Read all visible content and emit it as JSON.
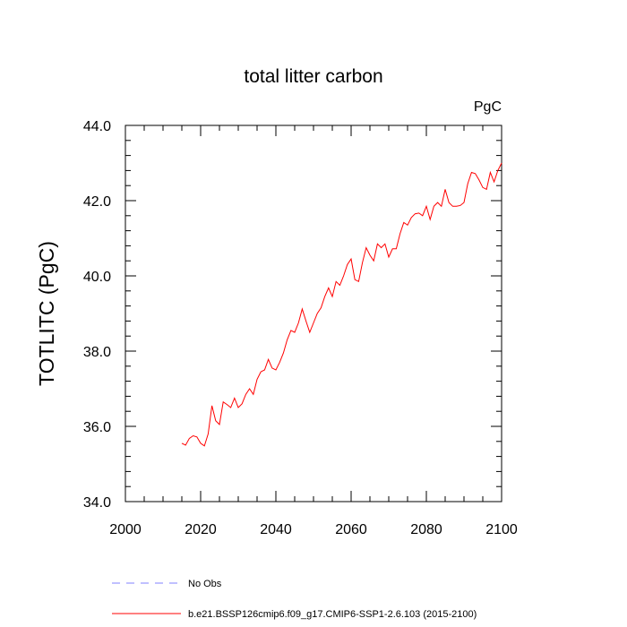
{
  "chart_data": {
    "type": "line",
    "title": "total litter carbon",
    "units_label": "PgC",
    "ylabel": "TOTLITC  (PgC)",
    "xlabel": "",
    "xlim": [
      2000,
      2100
    ],
    "ylim": [
      34.0,
      44.0
    ],
    "x_ticks": [
      2000,
      2020,
      2040,
      2060,
      2080,
      2100
    ],
    "x_tick_labels": [
      "2000",
      "2020",
      "2040",
      "2060",
      "2080",
      "2100"
    ],
    "y_ticks": [
      34.0,
      36.0,
      38.0,
      40.0,
      42.0,
      44.0
    ],
    "y_tick_labels": [
      "34.0",
      "36.0",
      "38.0",
      "40.0",
      "42.0",
      "44.0"
    ],
    "grid": false,
    "legend_position": "bottom-left, below plot",
    "legend": [
      {
        "label": "No Obs",
        "color": "#8080ff",
        "dash": "dashed"
      },
      {
        "label": "b.e21.BSSP126cmip6.f09_g17.CMIP6-SSP1-2.6.103 (2015-2100)",
        "color": "#ff0000",
        "dash": "solid"
      }
    ],
    "series": [
      {
        "name": "b.e21.BSSP126cmip6.f09_g17.CMIP6-SSP1-2.6.103 (2015-2100)",
        "color": "#ff0000",
        "x": [
          2015,
          2016,
          2017,
          2018,
          2019,
          2020,
          2021,
          2022,
          2023,
          2024,
          2025,
          2026,
          2027,
          2028,
          2029,
          2030,
          2031,
          2032,
          2033,
          2034,
          2035,
          2036,
          2037,
          2038,
          2039,
          2040,
          2041,
          2042,
          2043,
          2044,
          2045,
          2046,
          2047,
          2048,
          2049,
          2050,
          2051,
          2052,
          2053,
          2054,
          2055,
          2056,
          2057,
          2058,
          2059,
          2060,
          2061,
          2062,
          2063,
          2064,
          2065,
          2066,
          2067,
          2068,
          2069,
          2070,
          2071,
          2072,
          2073,
          2074,
          2075,
          2076,
          2077,
          2078,
          2079,
          2080,
          2081,
          2082,
          2083,
          2084,
          2085,
          2086,
          2087,
          2088,
          2089,
          2090,
          2091,
          2092,
          2093,
          2094,
          2095,
          2096,
          2097,
          2098,
          2099,
          2100
        ],
        "values": [
          35.55,
          35.5,
          35.68,
          35.75,
          35.72,
          35.55,
          35.48,
          35.8,
          36.55,
          36.15,
          36.05,
          36.65,
          36.58,
          36.5,
          36.75,
          36.5,
          36.6,
          36.85,
          37.0,
          36.85,
          37.25,
          37.45,
          37.5,
          37.78,
          37.55,
          37.5,
          37.7,
          37.95,
          38.3,
          38.55,
          38.5,
          38.75,
          39.12,
          38.8,
          38.5,
          38.75,
          39.0,
          39.15,
          39.45,
          39.68,
          39.45,
          39.85,
          39.75,
          40.0,
          40.3,
          40.45,
          39.9,
          39.85,
          40.35,
          40.75,
          40.55,
          40.4,
          40.85,
          40.75,
          40.85,
          40.5,
          40.72,
          40.72,
          41.12,
          41.42,
          41.35,
          41.55,
          41.65,
          41.67,
          41.6,
          41.85,
          41.5,
          41.85,
          41.95,
          41.85,
          42.3,
          41.95,
          41.85,
          41.85,
          41.87,
          41.95,
          42.45,
          42.75,
          42.72,
          42.55,
          42.35,
          42.3,
          42.75,
          42.5,
          42.8,
          43.0
        ]
      }
    ]
  }
}
